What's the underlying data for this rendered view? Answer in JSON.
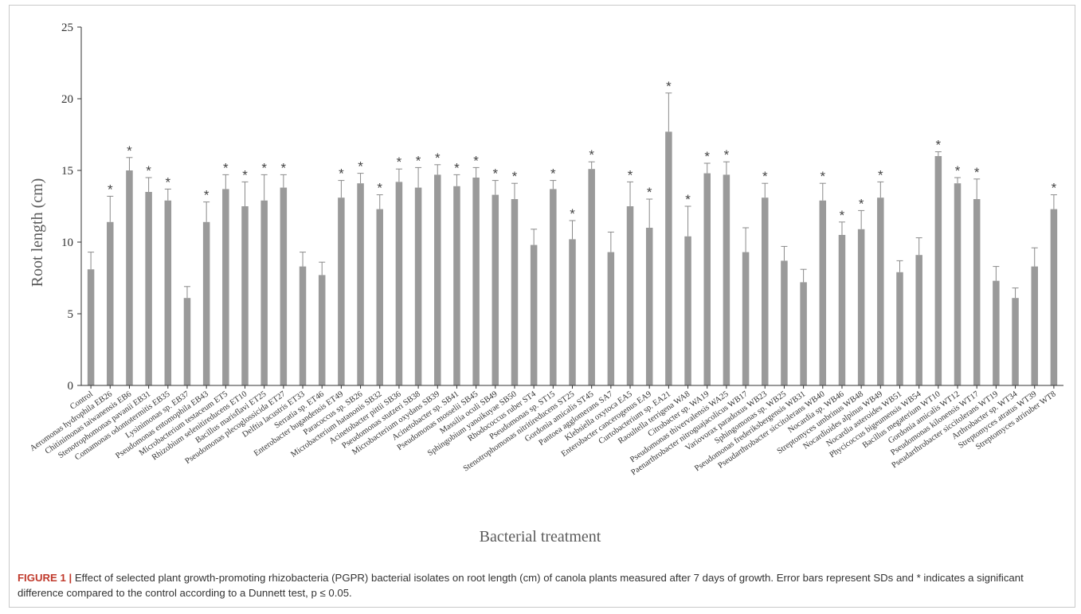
{
  "chart_data": {
    "type": "bar",
    "ylabel": "Root length (cm)",
    "xlabel": "Bacterial treatment",
    "ylim": [
      0,
      25
    ],
    "yticks": [
      0,
      5,
      10,
      15,
      20,
      25
    ],
    "grid": false,
    "bar_color": "#9a9a9a",
    "categories": [
      "Control",
      "Aeromonas hydrophila EB26",
      "Chitinimonas taiwanensis EB6",
      "Stenotrophomonas pavanii EB31",
      "Comamonas odontotermitis EB35",
      "Lysinimonas sp. EB37",
      "Pseudomonas entomophila EB43",
      "Microbacterium testaceum ET5",
      "Rhizobium selenitireducens ET10",
      "Bacillus marisflavi ET25",
      "Pseudomonas plecoglossicida ET27",
      "Delftia lacustris ET33",
      "Serratia sp. ET46",
      "Enterobacter bugandensis ET49",
      "Paracoccus sp. SB26",
      "Microbacterium hatanonis SB32",
      "Acinetobacter pittii SB36",
      "Pseudomonas stutzeri SB38",
      "Microbacterium oxydans SB39",
      "Acinetobacter sp. SB41",
      "Pseudomonas mosselii SB45",
      "Massilia oculi SB49",
      "Sphingobium yanoikuyae SB50",
      "Rhodococcus ruber ST4",
      "Pseudomonas sp. ST15",
      "Stenotrophomonas nitritireducens ST25",
      "Gordonia amicalis ST45",
      "Pantoea agglomerans SA7",
      "Klebsiella oxytoca EA5",
      "Enterobacter cancerogenus EA9",
      "Curtobacterium sp. EA21",
      "Raoultella terrigena WA8",
      "Citrobacter sp. WA19",
      "Pseudomonas thivervalensis WA25",
      "Paenarthrobacter nitroguajacolicus WB17",
      "Variovorax paradoxus WB23",
      "Sphingomonas sp. WB25",
      "Pseudomonas frederiksbergensis WB31",
      "Pseudarthrobacter siccitolerans WB40",
      "Nocardia sp. WB46",
      "Streptomyces umbrinus WB48",
      "Nocardioides alpinus WB49",
      "Nocardia asteroides WB51",
      "Phycicoccus bigeumensis WB54",
      "Bacillus megaterium WT10",
      "Gordonia amicalis WT12",
      "Pseudomonas kilonensis WT17",
      "Pseudarthrobacter siccitolerans WT19",
      "Arthrobacter sp. WT34",
      "Streptomyces atratus WT39",
      "Streptomyces atriruber WT8"
    ],
    "values": [
      8.1,
      11.4,
      15.0,
      13.5,
      12.9,
      6.1,
      11.4,
      13.7,
      12.5,
      12.9,
      13.8,
      8.3,
      7.7,
      13.1,
      14.1,
      12.3,
      14.2,
      13.8,
      14.7,
      13.9,
      14.5,
      13.3,
      13.0,
      9.8,
      13.7,
      10.2,
      15.1,
      9.3,
      12.5,
      11.0,
      17.7,
      10.4,
      14.8,
      14.7,
      9.3,
      13.1,
      8.7,
      7.2,
      12.9,
      10.5,
      10.9,
      13.1,
      7.9,
      9.1,
      16.0,
      14.1,
      13.0,
      7.3,
      6.1,
      8.3,
      12.3
    ],
    "errors": [
      1.2,
      1.8,
      0.9,
      1.0,
      0.8,
      0.8,
      1.4,
      1.0,
      1.7,
      1.8,
      0.9,
      1.0,
      0.9,
      1.2,
      0.7,
      1.0,
      0.9,
      1.4,
      0.7,
      0.8,
      0.7,
      1.0,
      1.1,
      1.1,
      0.6,
      1.3,
      0.5,
      1.4,
      1.7,
      2.0,
      2.7,
      2.1,
      0.7,
      0.9,
      1.7,
      1.0,
      1.0,
      0.9,
      1.2,
      0.9,
      1.3,
      1.1,
      0.8,
      1.2,
      0.3,
      0.4,
      1.4,
      1.0,
      0.7,
      1.3,
      1.0
    ],
    "significant": [
      false,
      true,
      true,
      true,
      true,
      false,
      true,
      true,
      true,
      true,
      true,
      false,
      false,
      true,
      true,
      true,
      true,
      true,
      true,
      true,
      true,
      true,
      true,
      false,
      true,
      true,
      true,
      false,
      true,
      true,
      true,
      true,
      true,
      true,
      false,
      true,
      false,
      false,
      true,
      true,
      true,
      true,
      false,
      false,
      true,
      true,
      true,
      false,
      false,
      false,
      true
    ],
    "significance_marker": "*"
  },
  "caption": {
    "label": "FIGURE 1",
    "separator": "|",
    "text": "Effect of selected plant growth-promoting rhizobacteria (PGPR) bacterial isolates on root length (cm) of canola plants measured after 7 days of growth. Error bars represent SDs and * indicates a significant difference compared to the control according to a Dunnett test, p ≤ 0.05."
  }
}
